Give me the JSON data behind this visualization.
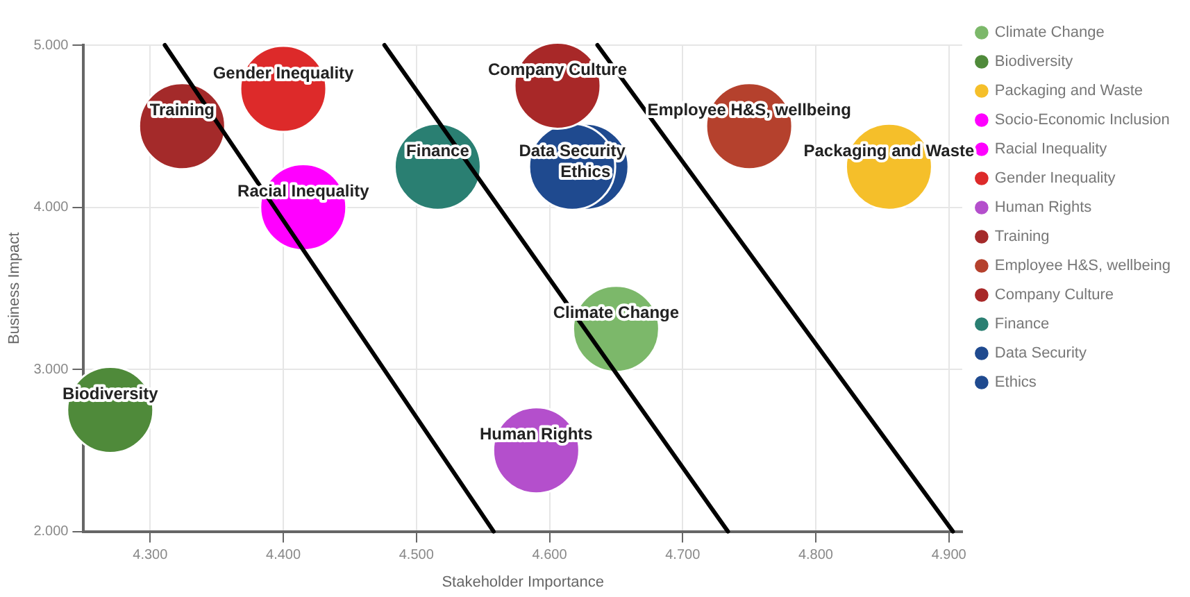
{
  "chart_data": {
    "type": "bubble",
    "xlabel": "Stakeholder Importance",
    "ylabel": "Business Impact",
    "xlim": [
      4.25,
      4.91
    ],
    "ylim": [
      2,
      5
    ],
    "xticks": [
      {
        "value": 4.3,
        "label": "4.300"
      },
      {
        "value": 4.4,
        "label": "4.400"
      },
      {
        "value": 4.5,
        "label": "4.500"
      },
      {
        "value": 4.6,
        "label": "4.600"
      },
      {
        "value": 4.7,
        "label": "4.700"
      },
      {
        "value": 4.8,
        "label": "4.800"
      },
      {
        "value": 4.9,
        "label": "4.900"
      }
    ],
    "yticks": [
      {
        "value": 2,
        "label": "2.000"
      },
      {
        "value": 3,
        "label": "3.000"
      },
      {
        "value": 4,
        "label": "4.000"
      },
      {
        "value": 5,
        "label": "5.000"
      }
    ],
    "grid": true,
    "legend": "right",
    "series": [
      {
        "name": "Climate Change",
        "color": "#7cb86a",
        "x": [
          4.65
        ],
        "values": [
          3.25
        ],
        "sizes": [
          1
        ]
      },
      {
        "name": "Biodiversity",
        "color": "#4f8a3a",
        "x": [
          4.27
        ],
        "values": [
          2.75
        ],
        "sizes": [
          1
        ]
      },
      {
        "name": "Packaging and Waste",
        "color": "#f5bf2a",
        "x": [
          4.855
        ],
        "values": [
          4.25
        ],
        "sizes": [
          1
        ]
      },
      {
        "name": "Socio-Economic Inclusion",
        "color": "#ff00ff",
        "x": [
          null
        ],
        "values": [
          null
        ],
        "sizes": [
          null
        ]
      },
      {
        "name": "Racial Inequality",
        "color": "#ff00ff",
        "x": [
          4.415
        ],
        "values": [
          4.0
        ],
        "sizes": [
          1
        ]
      },
      {
        "name": "Gender Inequality",
        "color": "#dd2a2a",
        "x": [
          4.4
        ],
        "values": [
          4.73
        ],
        "sizes": [
          1
        ]
      },
      {
        "name": "Human Rights",
        "color": "#b44fcc",
        "x": [
          4.59
        ],
        "values": [
          2.5
        ],
        "sizes": [
          1
        ]
      },
      {
        "name": "Training",
        "color": "#a42a2a",
        "x": [
          4.324
        ],
        "values": [
          4.5
        ],
        "sizes": [
          1
        ]
      },
      {
        "name": "Employee H&S, wellbeing",
        "color": "#b5412d",
        "x": [
          4.75
        ],
        "values": [
          4.5
        ],
        "sizes": [
          1
        ]
      },
      {
        "name": "Company Culture",
        "color": "#a82828",
        "x": [
          4.606
        ],
        "values": [
          4.75
        ],
        "sizes": [
          1
        ]
      },
      {
        "name": "Finance",
        "color": "#2a7f72",
        "x": [
          4.516
        ],
        "values": [
          4.25
        ],
        "sizes": [
          1
        ]
      },
      {
        "name": "Data Security",
        "color": "#1f4a8f",
        "x": [
          4.617
        ],
        "values": [
          4.25
        ],
        "sizes": [
          1
        ]
      },
      {
        "name": "Ethics",
        "color": "#1f4a8f",
        "x": [
          4.627
        ],
        "values": [
          4.25
        ],
        "sizes": [
          1
        ]
      },
      {
        "type": "line",
        "color": "#000000",
        "x": [
          4.311,
          4.558
        ],
        "values": [
          5.0,
          2.0
        ]
      },
      {
        "type": "line",
        "color": "#000000",
        "x": [
          4.476,
          4.734
        ],
        "values": [
          5.0,
          2.0
        ]
      },
      {
        "type": "line",
        "color": "#000000",
        "x": [
          4.636,
          4.903
        ],
        "values": [
          5.0,
          2.0
        ]
      }
    ]
  }
}
